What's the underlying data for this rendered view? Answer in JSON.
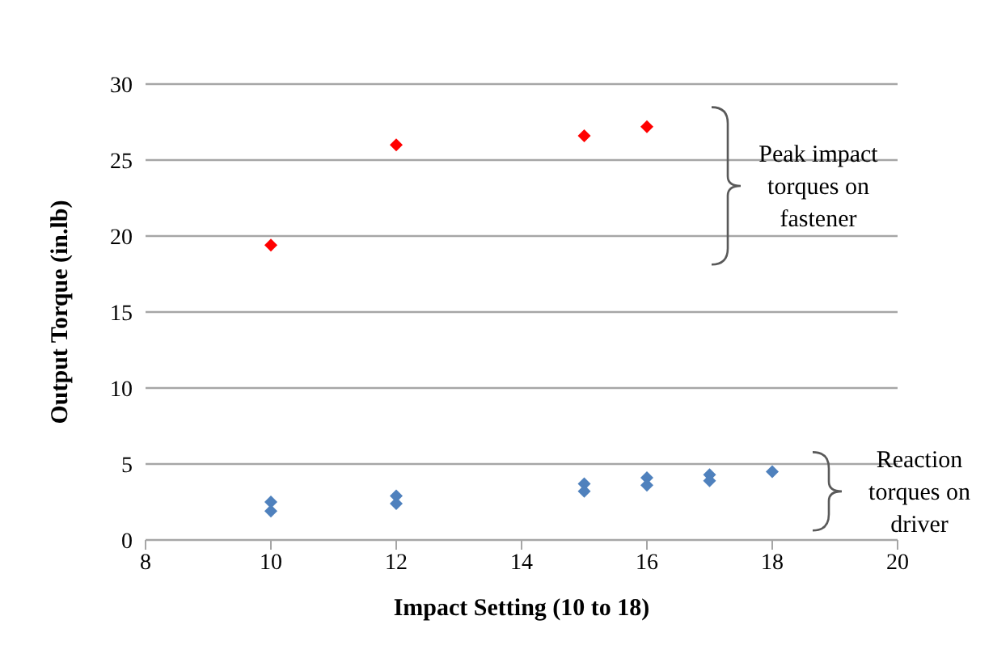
{
  "chart_data": {
    "type": "scatter",
    "xlabel": "Impact Setting (10 to 18)",
    "ylabel": "Output Torque (in.lb)",
    "series": [
      {
        "color": "#ff0000",
        "x": [
          10,
          12,
          15,
          16
        ],
        "values": [
          19.4,
          26.0,
          26.6,
          27.2
        ]
      },
      {
        "color": "#4f81bd",
        "x": [
          10,
          10,
          12,
          12,
          15,
          15,
          16,
          16,
          17,
          17,
          18
        ],
        "values": [
          2.5,
          1.9,
          2.9,
          2.4,
          3.7,
          3.2,
          4.1,
          3.6,
          4.3,
          3.9,
          4.5
        ]
      }
    ],
    "xlim": [
      8,
      20
    ],
    "xticks": [
      8,
      10,
      12,
      14,
      16,
      18,
      20
    ],
    "ylim": [
      0,
      30
    ],
    "yticks": [
      0,
      5,
      10,
      15,
      20,
      25,
      30
    ],
    "grid": "y",
    "marker": "diamond",
    "legend": false,
    "annotations": [
      "Peak impact torques on fastener",
      "Reaction torques on driver"
    ]
  }
}
